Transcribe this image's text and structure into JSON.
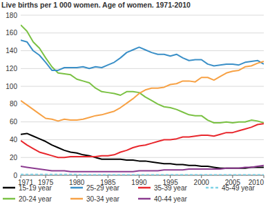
{
  "chart_data": {
    "type": "line",
    "title": "Live births per 1 000 women. Age of women. 1971-2010",
    "x": [
      1971,
      1972,
      1973,
      1974,
      1975,
      1976,
      1977,
      1978,
      1979,
      1980,
      1981,
      1982,
      1983,
      1984,
      1985,
      1986,
      1987,
      1988,
      1989,
      1990,
      1991,
      1992,
      1993,
      1994,
      1995,
      1996,
      1997,
      1998,
      1999,
      2000,
      2001,
      2002,
      2003,
      2004,
      2005,
      2006,
      2007,
      2008,
      2009,
      2010
    ],
    "xlim": [
      1971,
      2010
    ],
    "xticks": [
      1971,
      1975,
      1980,
      1985,
      1990,
      1995,
      2000,
      2005,
      2010
    ],
    "ylim": [
      0,
      180
    ],
    "yticks": [
      0,
      20,
      40,
      60,
      80,
      100,
      120,
      140,
      160,
      180
    ],
    "grid": true,
    "legend": "bottom",
    "series": [
      {
        "name": "15-19 year",
        "color": "#000000",
        "values": [
          46,
          47,
          44,
          41,
          38,
          34,
          31,
          28,
          26,
          25,
          23,
          22,
          20,
          18,
          18,
          18,
          18,
          17,
          17,
          16,
          16,
          15,
          14,
          13,
          13,
          12,
          12,
          11,
          11,
          10,
          10,
          9,
          8,
          8,
          8,
          8,
          8,
          9,
          9,
          9
        ]
      },
      {
        "name": "20-24 year",
        "color": "#7ac143",
        "values": [
          169,
          162,
          150,
          143,
          132,
          122,
          115,
          114,
          113,
          108,
          106,
          104,
          98,
          94,
          93,
          92,
          90,
          94,
          94,
          93,
          88,
          84,
          80,
          77,
          76,
          74,
          71,
          68,
          67,
          67,
          62,
          59,
          59,
          60,
          59,
          60,
          60,
          62,
          61,
          59
        ]
      },
      {
        "name": "25-29 year",
        "color": "#3a8fc7",
        "values": [
          152,
          150,
          140,
          135,
          127,
          118,
          118,
          121,
          121,
          121,
          122,
          120,
          122,
          121,
          124,
          127,
          132,
          138,
          141,
          144,
          141,
          138,
          136,
          136,
          134,
          136,
          132,
          129,
          130,
          130,
          125,
          123,
          124,
          125,
          125,
          124,
          127,
          128,
          129,
          125
        ]
      },
      {
        "name": "30-34 year",
        "color": "#f7a144",
        "values": [
          84,
          79,
          74,
          69,
          64,
          63,
          61,
          63,
          62,
          62,
          63,
          65,
          67,
          68,
          70,
          72,
          76,
          81,
          86,
          92,
          96,
          98,
          98,
          99,
          102,
          103,
          106,
          106,
          105,
          110,
          110,
          107,
          111,
          115,
          117,
          118,
          122,
          123,
          126,
          128
        ]
      },
      {
        "name": "35-39 year",
        "color": "#e8262c",
        "values": [
          39,
          34,
          30,
          26,
          24,
          22,
          20,
          20,
          21,
          21,
          21,
          21,
          21,
          22,
          22,
          23,
          26,
          28,
          31,
          33,
          34,
          36,
          38,
          40,
          40,
          41,
          43,
          43,
          44,
          45,
          45,
          44,
          46,
          48,
          48,
          50,
          52,
          54,
          57,
          58
        ]
      },
      {
        "name": "40-44 year",
        "color": "#8b3a8f",
        "values": [
          10,
          9,
          8,
          7,
          6,
          5,
          5,
          5,
          4,
          4,
          4,
          4,
          4,
          4,
          4,
          4,
          4,
          4,
          4,
          5,
          5,
          5,
          5,
          6,
          6,
          6,
          6,
          7,
          7,
          7,
          7,
          7,
          7,
          8,
          8,
          8,
          9,
          9,
          10,
          11
        ]
      },
      {
        "name": "45-49 year",
        "color": "#7fd3e6",
        "line_style": "dashed",
        "values": [
          1,
          1,
          1,
          1,
          1,
          1,
          1,
          1,
          1,
          1,
          0.5,
          0.5,
          0.5,
          0.5,
          0.5,
          0.5,
          0.5,
          0.5,
          0.5,
          0.5,
          0.5,
          0.5,
          0.5,
          0.5,
          0.5,
          0.5,
          0.5,
          0.5,
          0.5,
          0.5,
          0.5,
          0.5,
          0.5,
          0.5,
          0.5,
          0.5,
          0.5,
          0.5,
          0.5,
          0.5
        ]
      }
    ]
  }
}
